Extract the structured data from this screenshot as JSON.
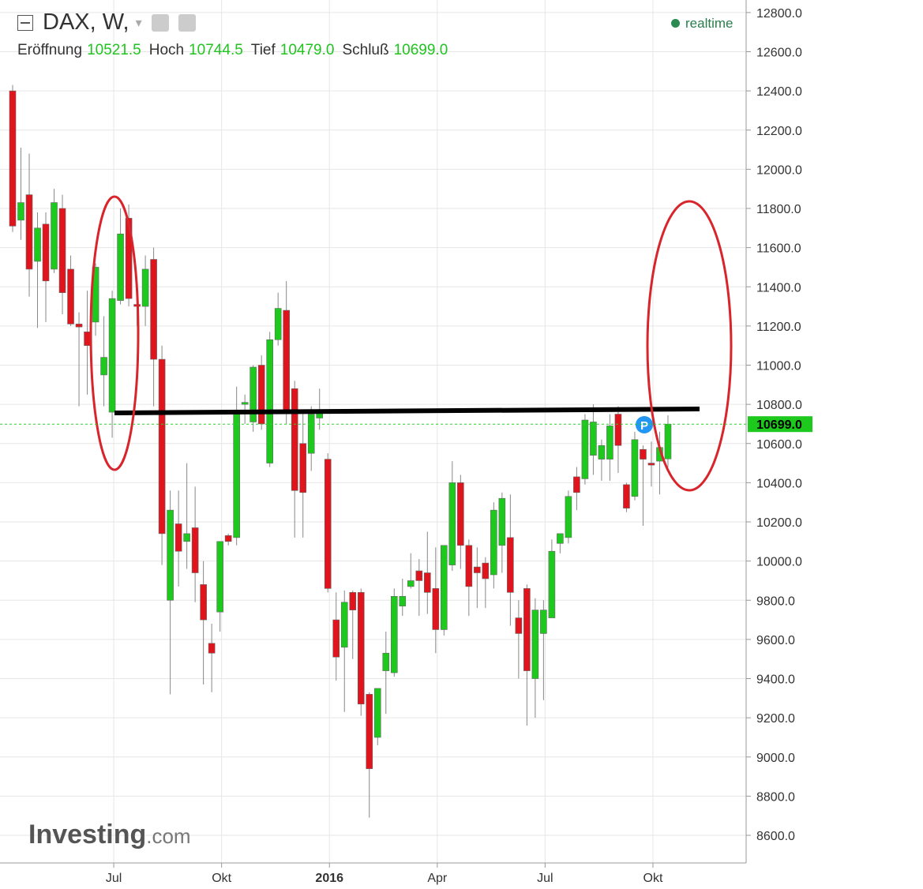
{
  "header": {
    "title": "DAX, W,",
    "status": "realtime",
    "ohlc": [
      {
        "label": "Eröffnung",
        "value": "10521.5"
      },
      {
        "label": "Hoch",
        "value": "10744.5"
      },
      {
        "label": "Tief",
        "value": "10479.0"
      },
      {
        "label": "Schluß",
        "value": "10699.0"
      }
    ]
  },
  "logo": {
    "main": "Investing",
    "suffix": ".com"
  },
  "chart_data": {
    "type": "candlestick",
    "up_color": "#1ec91e",
    "down_color": "#e0141c",
    "grid": true,
    "categories": [
      null,
      null,
      null,
      null,
      null,
      null,
      null,
      null,
      null,
      null,
      null,
      null,
      "Jul",
      null,
      null,
      null,
      null,
      null,
      null,
      null,
      null,
      null,
      null,
      null,
      null,
      "Okt",
      null,
      null,
      null,
      null,
      null,
      null,
      null,
      null,
      null,
      null,
      null,
      null,
      "2016",
      null,
      null,
      null,
      null,
      null,
      null,
      null,
      null,
      null,
      null,
      null,
      null,
      "Apr",
      null,
      null,
      null,
      null,
      null,
      null,
      null,
      null,
      null,
      null,
      null,
      null,
      "Jul",
      null,
      null,
      null,
      null,
      null,
      null,
      null,
      null,
      null,
      null,
      null,
      null,
      "Okt",
      null,
      null
    ],
    "open": [
      12400,
      11740,
      11870,
      11530,
      11720,
      11490,
      11800,
      11490,
      11210,
      11170,
      11220,
      10950,
      10760,
      11330,
      11750,
      11310,
      11300,
      11540,
      11030,
      9800,
      10190,
      10100,
      10170,
      9880,
      9580,
      9740,
      10130,
      10120,
      10800,
      10710,
      11000,
      10500,
      11130,
      11280,
      10880,
      10600,
      10550,
      10730,
      10520,
      9700,
      9560,
      9840,
      9840,
      9320,
      9100,
      9440,
      9430,
      9770,
      9870,
      9950,
      9940,
      9860,
      9650,
      9980,
      10400,
      10080,
      9970,
      9990,
      9930,
      10080,
      10120,
      9710,
      9860,
      9400,
      9630,
      9710,
      10090,
      10120,
      10430,
      10420,
      10540,
      10520,
      10520,
      10750,
      10390,
      10330,
      10570,
      10500,
      10510,
      10521.5
    ],
    "high": [
      12430,
      12110,
      12080,
      11780,
      11780,
      11900,
      11870,
      11560,
      11270,
      11380,
      11520,
      11250,
      11380,
      11800,
      11820,
      11400,
      11560,
      11600,
      11100,
      10360,
      10360,
      10500,
      10380,
      10000,
      9680,
      10100,
      10140,
      10890,
      10850,
      11000,
      11050,
      11170,
      11370,
      11430,
      10920,
      10760,
      10790,
      10880,
      10550,
      9840,
      9850,
      9850,
      9860,
      9330,
      9350,
      9640,
      9860,
      9910,
      10040,
      10010,
      10150,
      10070,
      10080,
      10510,
      10440,
      10110,
      10070,
      10020,
      10300,
      10350,
      10340,
      9800,
      9880,
      9810,
      9800,
      10110,
      10140,
      10360,
      10480,
      10750,
      10800,
      10620,
      10750,
      10790,
      10400,
      10660,
      10590,
      10610,
      10660,
      10744.5
    ],
    "low": [
      11680,
      11640,
      11350,
      11190,
      11220,
      11470,
      11260,
      11200,
      10790,
      10850,
      11150,
      10790,
      10630,
      11310,
      11300,
      11200,
      11200,
      10790,
      9980,
      9320,
      9870,
      9960,
      9790,
      9370,
      9330,
      9640,
      10080,
      10080,
      10700,
      10660,
      10670,
      10480,
      11100,
      10700,
      10120,
      10120,
      10460,
      10670,
      9840,
      9390,
      9230,
      9500,
      9210,
      8690,
      9060,
      9220,
      9410,
      9720,
      9860,
      9720,
      9730,
      9530,
      9620,
      9950,
      9960,
      9720,
      9760,
      9760,
      9860,
      9940,
      9670,
      9400,
      9160,
      9200,
      9290,
      9710,
      10040,
      10090,
      10260,
      10390,
      10440,
      10410,
      10410,
      10450,
      10250,
      10310,
      10180,
      10380,
      10340,
      10479
    ],
    "close": [
      11710,
      11830,
      11490,
      11700,
      11430,
      11830,
      11370,
      11210,
      11195,
      11100,
      11500,
      11040,
      11340,
      11670,
      11340,
      11300,
      11490,
      11030,
      10140,
      10260,
      10050,
      10140,
      9940,
      9700,
      9530,
      10100,
      10100,
      10760,
      10810,
      10990,
      10700,
      11130,
      11290,
      10760,
      10360,
      10350,
      10750,
      10770,
      9860,
      9510,
      9790,
      9750,
      9270,
      8940,
      9350,
      9530,
      9820,
      9820,
      9900,
      9900,
      9840,
      9650,
      10080,
      10400,
      10080,
      9870,
      9940,
      9910,
      10260,
      10320,
      9840,
      9630,
      9440,
      9750,
      9750,
      10050,
      10140,
      10330,
      10350,
      10720,
      10710,
      10590,
      10690,
      10590,
      10270,
      10620,
      10520,
      10490,
      10580,
      10699
    ],
    "ylim": [
      8459,
      12864
    ],
    "yticks": [
      {
        "value": 8600,
        "label": "8600.0"
      },
      {
        "value": 8800,
        "label": "8800.0"
      },
      {
        "value": 9000,
        "label": "9000.0"
      },
      {
        "value": 9200,
        "label": "9200.0"
      },
      {
        "value": 9400,
        "label": "9400.0"
      },
      {
        "value": 9600,
        "label": "9600.0"
      },
      {
        "value": 9800,
        "label": "9800.0"
      },
      {
        "value": 10000,
        "label": "10000.0"
      },
      {
        "value": 10200,
        "label": "10200.0"
      },
      {
        "value": 10400,
        "label": "10400.0"
      },
      {
        "value": 10600,
        "label": "10600.0"
      },
      {
        "value": 10800,
        "label": "10800.0"
      },
      {
        "value": 11000,
        "label": "11000.0"
      },
      {
        "value": 11200,
        "label": "11200.0"
      },
      {
        "value": 11400,
        "label": "11400.0"
      },
      {
        "value": 11600,
        "label": "11600.0"
      },
      {
        "value": 11800,
        "label": "11800.0"
      },
      {
        "value": 12000,
        "label": "12000.0"
      },
      {
        "value": 12200,
        "label": "12200.0"
      },
      {
        "value": 12400,
        "label": "12400.0"
      },
      {
        "value": 12600,
        "label": "12600.0"
      },
      {
        "value": 12800,
        "label": "12800.0"
      }
    ],
    "last_price": {
      "value": 10699,
      "label": "10699.0"
    }
  }
}
